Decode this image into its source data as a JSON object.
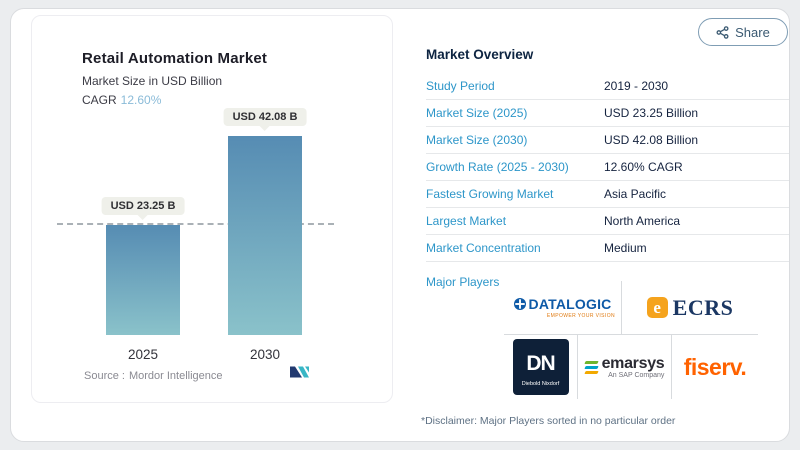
{
  "share": {
    "label": "Share"
  },
  "chart_panel": {
    "title": "Retail Automation Market",
    "subtitle": "Market Size in USD Billion",
    "cagr_label": "CAGR",
    "cagr_value": "12.60%",
    "source_label": "Source :",
    "source_value": "Mordor Intelligence"
  },
  "chart_data": {
    "type": "bar",
    "title": "Retail Automation Market",
    "subtitle": "Market Size in USD Billion",
    "cagr": "12.60%",
    "categories": [
      "2025",
      "2030"
    ],
    "values": [
      23.25,
      42.08
    ],
    "value_labels": [
      "USD 23.25 B",
      "USD 42.08 B"
    ],
    "ylabel": "USD Billion",
    "ylim": [
      0,
      45
    ],
    "grid": false,
    "reference_line": 23.25,
    "bar_gradient_top": "#568cb3",
    "bar_gradient_bottom": "#8ac2ca"
  },
  "overview": {
    "heading": "Market Overview",
    "rows": [
      {
        "label": "Study Period",
        "value": "2019 - 2030"
      },
      {
        "label": "Market Size (2025)",
        "value": "USD 23.25 Billion"
      },
      {
        "label": "Market Size (2030)",
        "value": "USD 42.08 Billion"
      },
      {
        "label": "Growth Rate (2025 - 2030)",
        "value": "12.60% CAGR"
      },
      {
        "label": "Fastest Growing Market",
        "value": "Asia Pacific"
      },
      {
        "label": "Largest Market",
        "value": "North America"
      },
      {
        "label": "Market Concentration",
        "value": "Medium"
      }
    ],
    "major_players_label": "Major Players",
    "major_players": [
      {
        "name": "DATALOGIC",
        "tagline": "EMPOWER YOUR VISION"
      },
      {
        "name": "ECRS",
        "icon_letter": "e"
      },
      {
        "name": "Diebold Nixdorf",
        "abbr": "DN"
      },
      {
        "name": "emarsys",
        "tagline": "An SAP Company"
      },
      {
        "name": "fiserv."
      }
    ],
    "disclaimer": "*Disclaimer: Major Players sorted in no particular order"
  },
  "colors": {
    "page_background": "#ebedef",
    "accent_blue": "#2d96c9",
    "value_navy": "#15233f",
    "cagr_value": "#8abbd8",
    "bar_top": "#568cb3",
    "bar_bottom": "#8ac2ca",
    "datalogic_blue": "#0e5aa7",
    "ecrs_navy": "#1b3763",
    "ecrs_orange": "#f5a31d",
    "diebold_navy": "#0e2038",
    "fiserv_orange": "#ff6200",
    "mordor_navy": "#223a70",
    "mordor_teal": "#38b6c5",
    "share_button": "#3b5a72"
  }
}
